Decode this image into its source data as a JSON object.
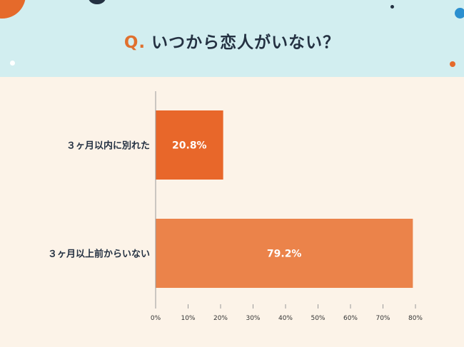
{
  "header": {
    "q_label": "Q.",
    "title": "いつから恋人がいない？"
  },
  "colors": {
    "header_bg": "#d2eef0",
    "page_bg": "#fcf3e8",
    "title_text": "#243142",
    "accent_orange": "#e0702e"
  },
  "chart_data": {
    "type": "bar",
    "orientation": "horizontal",
    "title": "",
    "xlabel": "",
    "ylabel": "",
    "xlim": [
      0,
      80
    ],
    "x_ticks": [
      0,
      10,
      20,
      30,
      40,
      50,
      60,
      70,
      80
    ],
    "x_tick_labels": [
      "0%",
      "10%",
      "20%",
      "30%",
      "40%",
      "50%",
      "60%",
      "70%",
      "80%"
    ],
    "categories": [
      "３ヶ月以内に別れた",
      "３ヶ月以上前からいない"
    ],
    "values": [
      20.8,
      79.2
    ],
    "value_labels": [
      "20.8%",
      "79.2%"
    ],
    "bar_colors": [
      "#e8672a",
      "#eb834a"
    ],
    "value_label_color": "#ffffff",
    "grid": false,
    "legend": "none"
  }
}
